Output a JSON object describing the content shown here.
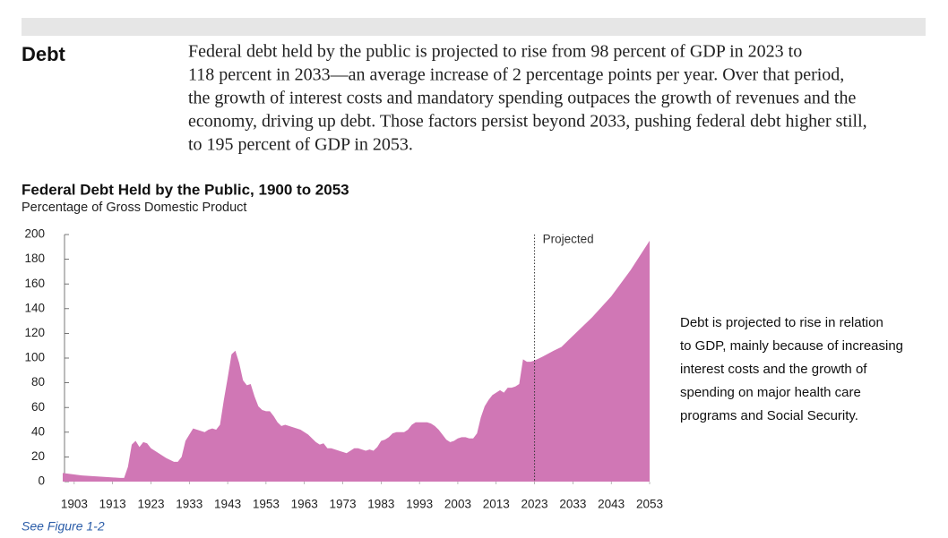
{
  "heading": "Debt",
  "paragraph_lines": [
    "Federal debt held by the public is projected to rise from 98 percent of GDP in 2023 to",
    "118 percent in 2033—an average increase of 2 percentage points per year. Over that period,",
    "the growth of interest costs and mandatory spending outpaces the growth of revenues and the",
    "economy, driving up debt. Those factors persist beyond 2033, pushing federal debt higher still,",
    "to 195 percent of GDP in 2053."
  ],
  "side_note_lines": [
    "Debt is projected to rise in relation",
    "to GDP, mainly because of increasing",
    "interest costs and the growth of",
    "spending on major health care",
    "programs and Social Security."
  ],
  "footnote": "See Figure 1-2",
  "chart_data": {
    "type": "area",
    "title": "Federal Debt Held by the Public, 1900 to 2053",
    "subtitle": "Percentage of Gross Domestic Product",
    "annotation": "Projected",
    "projection_start": 2023,
    "x": [
      1900,
      1905,
      1910,
      1915,
      1916,
      1917,
      1918,
      1919,
      1920,
      1921,
      1922,
      1923,
      1925,
      1927,
      1929,
      1930,
      1931,
      1932,
      1933,
      1934,
      1935,
      1936,
      1937,
      1938,
      1939,
      1940,
      1941,
      1942,
      1943,
      1944,
      1945,
      1946,
      1947,
      1948,
      1949,
      1950,
      1951,
      1952,
      1953,
      1954,
      1955,
      1956,
      1957,
      1958,
      1959,
      1960,
      1961,
      1962,
      1963,
      1964,
      1965,
      1966,
      1967,
      1968,
      1969,
      1970,
      1971,
      1972,
      1973,
      1974,
      1975,
      1976,
      1977,
      1978,
      1979,
      1980,
      1981,
      1982,
      1983,
      1984,
      1985,
      1986,
      1987,
      1988,
      1989,
      1990,
      1991,
      1992,
      1993,
      1994,
      1995,
      1996,
      1997,
      1998,
      1999,
      2000,
      2001,
      2002,
      2003,
      2004,
      2005,
      2006,
      2007,
      2008,
      2009,
      2010,
      2011,
      2012,
      2013,
      2014,
      2015,
      2016,
      2017,
      2018,
      2019,
      2020,
      2021,
      2022,
      2023,
      2025,
      2028,
      2030,
      2033,
      2038,
      2043,
      2048,
      2053
    ],
    "series": [
      {
        "color": "#d077b5",
        "values": [
          7,
          5,
          4,
          3,
          3,
          12,
          30,
          33,
          28,
          32,
          31,
          27,
          23,
          19,
          16,
          16,
          20,
          33,
          38,
          43,
          42,
          41,
          40,
          42,
          43,
          42,
          46,
          66,
          84,
          103,
          106,
          96,
          82,
          78,
          79,
          69,
          61,
          58,
          57,
          57,
          53,
          48,
          45,
          46,
          45,
          44,
          43,
          42,
          40,
          38,
          35,
          32,
          30,
          31,
          27,
          27,
          26,
          25,
          24,
          23,
          25,
          27,
          27,
          26,
          25,
          26,
          25,
          28,
          33,
          34,
          36,
          39,
          40,
          40,
          40,
          42,
          46,
          48,
          48,
          48,
          48,
          47,
          45,
          42,
          38,
          34,
          32,
          33,
          35,
          36,
          36,
          35,
          35,
          39,
          52,
          61,
          66,
          70,
          72,
          74,
          72,
          76,
          76,
          77,
          79,
          99,
          97,
          97,
          98,
          101,
          106,
          109,
          118,
          133,
          150,
          171,
          195
        ]
      }
    ],
    "xlim": [
      1900,
      2053
    ],
    "xticks": [
      1903,
      1913,
      1923,
      1933,
      1943,
      1953,
      1963,
      1973,
      1983,
      1993,
      2003,
      2013,
      2023,
      2033,
      2043,
      2053
    ],
    "ylim": [
      0,
      200
    ],
    "yticks": [
      0,
      20,
      40,
      60,
      80,
      100,
      120,
      140,
      160,
      180,
      200
    ],
    "grid": false
  }
}
